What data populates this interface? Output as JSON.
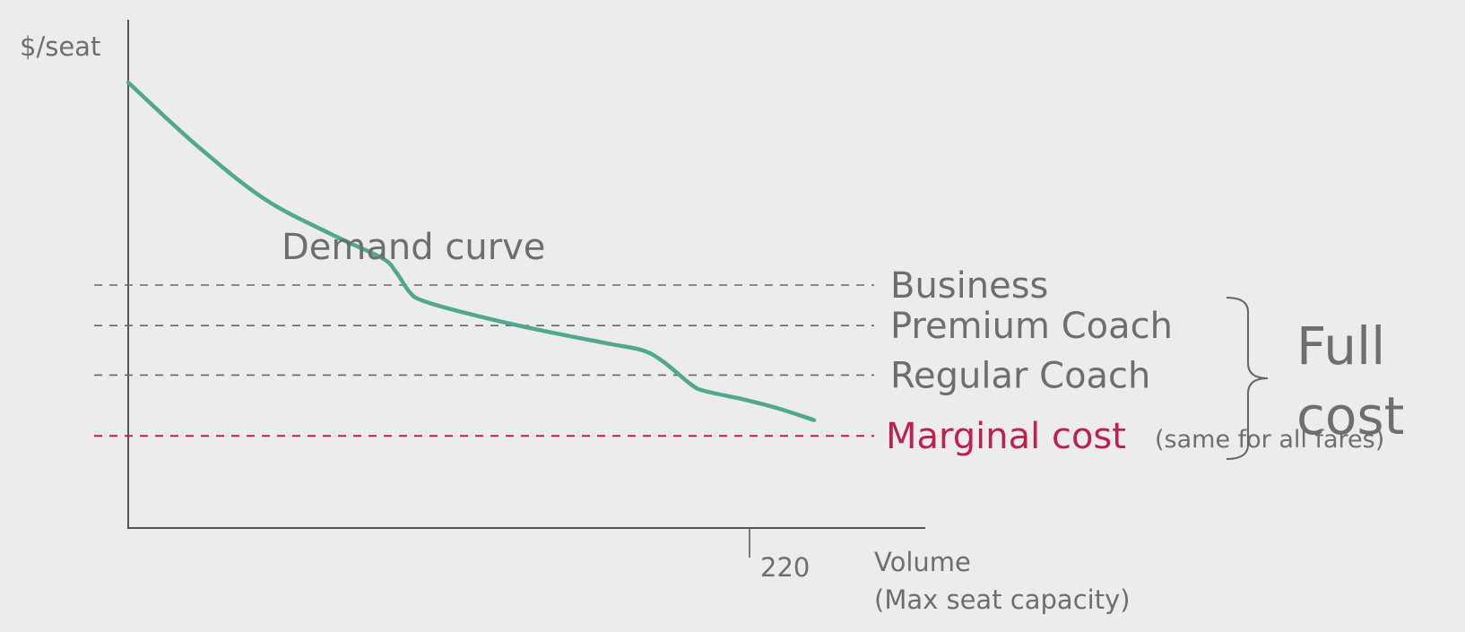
{
  "colors": {
    "background": "#ececec",
    "axis": "#555555",
    "demand_curve": "#4fa88f",
    "fare_lines": "#666666",
    "marginal_cost": "#c0204f",
    "text": "#6e6e6e"
  },
  "chart_data": {
    "type": "line",
    "ylabel": "$/seat",
    "xlabel": "Volume",
    "xlabel_sub": "(Max seat capacity)",
    "x_ticks": [
      "220"
    ],
    "grid": false,
    "series": [
      {
        "name": "Demand curve",
        "points": [
          [
            0,
            100
          ],
          [
            10,
            86
          ],
          [
            20,
            74
          ],
          [
            30,
            66
          ],
          [
            37,
            61
          ],
          [
            39,
            58
          ],
          [
            41,
            53.5
          ],
          [
            43,
            51.5
          ],
          [
            50,
            48.5
          ],
          [
            60,
            45
          ],
          [
            70,
            42
          ],
          [
            75,
            40.5
          ],
          [
            78,
            38
          ],
          [
            82,
            33
          ],
          [
            84,
            31.5
          ],
          [
            90,
            29.5
          ],
          [
            95,
            27.5
          ],
          [
            100,
            25
          ]
        ]
      }
    ],
    "levels": [
      {
        "name": "Business",
        "value": 55
      },
      {
        "name": "Premium Coach",
        "value": 46
      },
      {
        "name": "Regular Coach",
        "value": 35
      },
      {
        "name": "Marginal cost",
        "note": "(same for all fares)",
        "value": 21.5
      }
    ],
    "bracket_label": [
      "Full",
      "cost"
    ]
  }
}
